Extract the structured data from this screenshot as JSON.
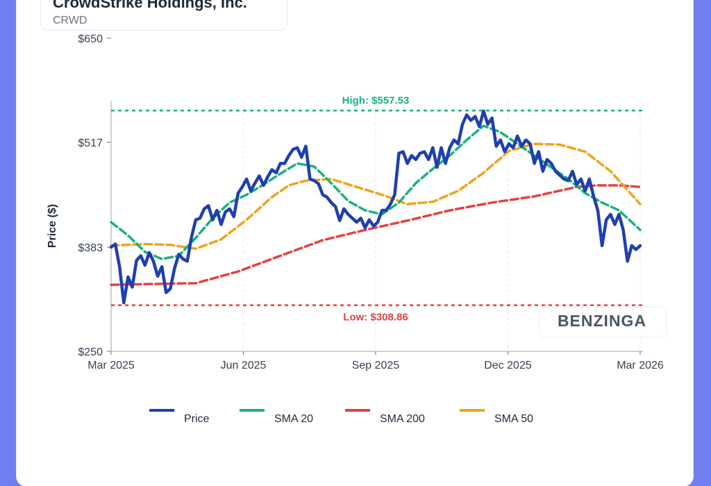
{
  "header": {
    "company": "CrowdStrike Holdings, Inc.",
    "ticker": "CRWD"
  },
  "watermark": "BENZINGA",
  "chart_data": {
    "type": "line",
    "ylabel": "Price ($)",
    "xlabel": "",
    "ylim": [
      250,
      650
    ],
    "y_ticks": [
      "$250",
      "$383",
      "$517",
      "$650"
    ],
    "y_tick_values": [
      250,
      383,
      517,
      650
    ],
    "x_ticks": [
      "Mar 2025",
      "Jun 2025",
      "Sep 2025",
      "Dec 2025",
      "Mar 2026"
    ],
    "grid": true,
    "legend_position": "bottom",
    "high": {
      "label": "High: $557.53",
      "value": 557.53,
      "color": "#16b37a"
    },
    "low": {
      "label": "Low: $308.86",
      "value": 308.86,
      "color": "#e5403f"
    },
    "series": [
      {
        "name": "Price",
        "color": "#1f3fae",
        "x": [
          0,
          1,
          2,
          3,
          4,
          5,
          6,
          7,
          8,
          9,
          10,
          11,
          12,
          13,
          14,
          15,
          16,
          17,
          18,
          19,
          20,
          21,
          22,
          23,
          24,
          25,
          26,
          27,
          28,
          29,
          30,
          31,
          32,
          33,
          34,
          35,
          36,
          37,
          38,
          39,
          40,
          41,
          42,
          43,
          44,
          45,
          46,
          47,
          48,
          49,
          50,
          51,
          52,
          53,
          54,
          55,
          56,
          57,
          58,
          59,
          60,
          61,
          62,
          63,
          64,
          65,
          66,
          67,
          68,
          69,
          70,
          71,
          72,
          73,
          74,
          75,
          76,
          77,
          78,
          79,
          80,
          81,
          82,
          83,
          84,
          85,
          86,
          87,
          88,
          89,
          90,
          91,
          92,
          93,
          94,
          95,
          96,
          97,
          98,
          99,
          100,
          101,
          102,
          103,
          104,
          105,
          106,
          107,
          108,
          109,
          110,
          111,
          112,
          113,
          114,
          115,
          116,
          117,
          118,
          119,
          120,
          121,
          122,
          123,
          124,
          125
        ],
        "values": [
          383,
          387,
          358,
          312,
          345,
          332,
          366,
          372,
          360,
          376,
          365,
          346,
          358,
          325,
          330,
          356,
          374,
          368,
          365,
          396,
          418,
          420,
          432,
          436,
          418,
          430,
          412,
          428,
          432,
          422,
          452,
          460,
          470,
          455,
          465,
          474,
          462,
          473,
          482,
          478,
          490,
          490,
          500,
          508,
          510,
          498,
          512,
          470,
          468,
          464,
          450,
          447,
          440,
          435,
          417,
          432,
          425,
          420,
          415,
          420,
          408,
          418,
          410,
          415,
          430,
          430,
          438,
          450,
          503,
          505,
          490,
          500,
          495,
          503,
          505,
          495,
          510,
          485,
          510,
          490,
          510,
          520,
          515,
          540,
          552,
          545,
          550,
          537,
          557,
          540,
          548,
          512,
          520,
          505,
          515,
          510,
          525,
          512,
          520,
          515,
          490,
          505,
          480,
          495,
          490,
          480,
          475,
          470,
          468,
          480,
          463,
          470,
          455,
          470,
          448,
          430,
          385,
          418,
          425,
          412,
          425,
          405,
          365,
          385,
          380,
          385
        ]
      },
      {
        "name": "SMA 20",
        "color": "#16b37a",
        "x": [
          0,
          4,
          8,
          12,
          16,
          20,
          24,
          28,
          32,
          36,
          40,
          44,
          48,
          52,
          56,
          60,
          64,
          68,
          72,
          76,
          80,
          84,
          88,
          92,
          96,
          100,
          104,
          108,
          112,
          116,
          120,
          125
        ],
        "values": [
          415,
          398,
          377,
          368,
          372,
          395,
          420,
          440,
          450,
          463,
          477,
          490,
          486,
          465,
          442,
          430,
          425,
          440,
          465,
          483,
          500,
          520,
          538,
          530,
          515,
          500,
          485,
          470,
          452,
          440,
          430,
          405
        ]
      },
      {
        "name": "SMA 200",
        "color": "#e5403f",
        "x": [
          0,
          10,
          20,
          30,
          40,
          50,
          60,
          70,
          80,
          90,
          100,
          110,
          115,
          120,
          125
        ],
        "values": [
          335,
          336,
          337,
          352,
          372,
          392,
          405,
          417,
          430,
          440,
          448,
          460,
          462,
          462,
          460
        ]
      },
      {
        "name": "SMA 50",
        "color": "#f1a21a",
        "x": [
          0,
          8,
          14,
          20,
          26,
          32,
          38,
          42,
          46,
          52,
          58,
          64,
          70,
          76,
          82,
          88,
          94,
          100,
          106,
          112,
          118,
          125
        ],
        "values": [
          385,
          387,
          386,
          381,
          393,
          418,
          447,
          462,
          468,
          470,
          460,
          450,
          438,
          441,
          455,
          478,
          506,
          515,
          514,
          505,
          480,
          438
        ]
      }
    ]
  }
}
